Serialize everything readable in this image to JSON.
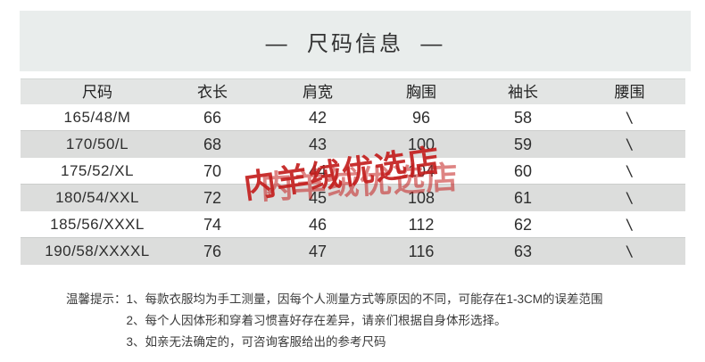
{
  "header": {
    "title": "—  尺码信息  —"
  },
  "table": {
    "columns": [
      "尺码",
      "衣长",
      "肩宽",
      "胸围",
      "袖长",
      "腰围"
    ],
    "rows": [
      [
        "165/48/M",
        "66",
        "42",
        "96",
        "58",
        "\\"
      ],
      [
        "170/50/L",
        "68",
        "43",
        "100",
        "59",
        "\\"
      ],
      [
        "175/52/XL",
        "70",
        "44",
        "104",
        "60",
        "\\"
      ],
      [
        "180/54/XXL",
        "72",
        "45",
        "108",
        "61",
        "\\"
      ],
      [
        "185/56/XXXL",
        "74",
        "46",
        "112",
        "62",
        "\\"
      ],
      [
        "190/58/XXXXL",
        "76",
        "47",
        "116",
        "63",
        "\\"
      ]
    ]
  },
  "watermark": {
    "text": "内羊绒优选店"
  },
  "notes": {
    "label": "温馨提示：",
    "items": [
      "1、每款衣服均为手工测量，因每个人测量方式等原因的不同，可能存在1-3CM的误差范围",
      "2、每个人因体形和穿着习惯喜好存在差异，请亲们根据自身体形选择。",
      "3、如亲无法确定的，可咨询客服给出的参考尺码"
    ]
  },
  "colors": {
    "band": "#e9edec",
    "header-row": "#e3e5e4",
    "row-alt": "#dcdddc",
    "watermark": "#c4201f",
    "text": "#2e2e2e"
  }
}
